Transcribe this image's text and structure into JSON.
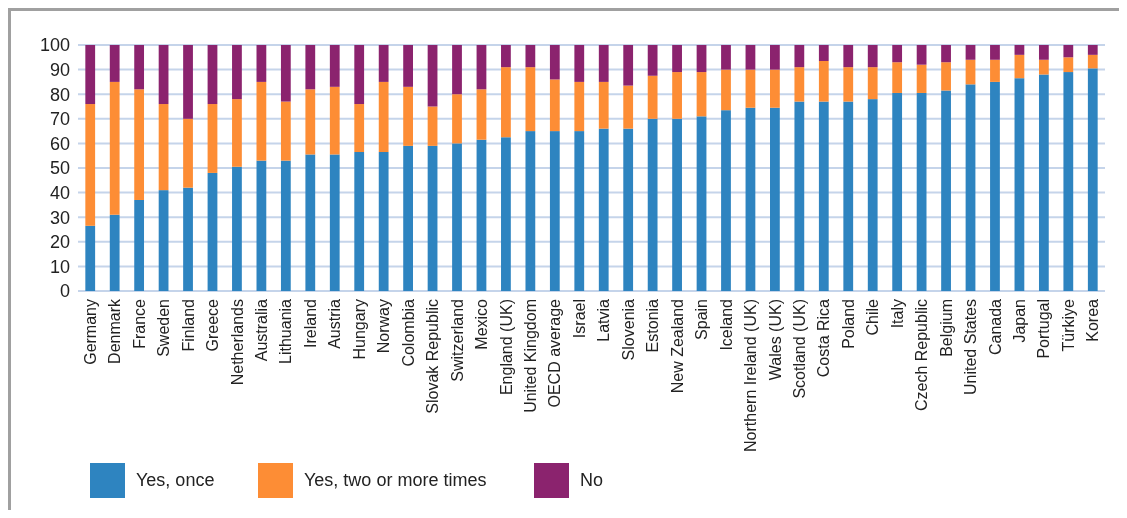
{
  "chart_data": {
    "type": "bar",
    "stacked": true,
    "categories": [
      "Germany",
      "Denmark",
      "France",
      "Sweden",
      "Finland",
      "Greece",
      "Netherlands",
      "Australia",
      "Lithuania",
      "Ireland",
      "Austria",
      "Hungary",
      "Norway",
      "Colombia",
      "Slovak Republic",
      "Switzerland",
      "Mexico",
      "England (UK)",
      "United Kingdom",
      "OECD average",
      "Israel",
      "Latvia",
      "Slovenia",
      "Estonia",
      "New Zealand",
      "Spain",
      "Iceland",
      "Northern Ireland (UK)",
      "Wales (UK)",
      "Scotland (UK)",
      "Costa Rica",
      "Poland",
      "Chile",
      "Italy",
      "Czech Republic",
      "Belgium",
      "United States",
      "Canada",
      "Japan",
      "Portugal",
      "Türkiye",
      "Korea"
    ],
    "series": [
      {
        "name": "Yes, once",
        "color": "#2e84c0",
        "values": [
          26.5,
          31,
          37,
          41,
          42,
          48,
          50.5,
          53,
          53,
          55.5,
          55.5,
          56.5,
          56.5,
          59,
          59,
          60,
          61.5,
          62.5,
          65,
          65,
          65,
          66,
          66,
          70,
          70,
          71,
          73.5,
          74.5,
          74.5,
          77,
          77,
          77,
          78,
          80.5,
          80.5,
          81.5,
          84,
          85,
          86.5,
          88,
          89,
          90.5
        ]
      },
      {
        "name": "Yes, two or more times",
        "color": "#fd8d35",
        "values": [
          49.5,
          54,
          45,
          35,
          28,
          28,
          27.5,
          32,
          24,
          26.5,
          27.5,
          19.5,
          28.5,
          24,
          16,
          20,
          20.5,
          28.5,
          26,
          21,
          20,
          19,
          17.5,
          17.5,
          19,
          18,
          16.5,
          15.5,
          15.5,
          14,
          16.5,
          14,
          13,
          12.5,
          11.5,
          11.5,
          10,
          9,
          9.5,
          6,
          6,
          5.5
        ]
      },
      {
        "name": "No",
        "color": "#8b236e",
        "values": [
          24,
          15,
          18,
          24,
          30,
          24,
          22,
          15,
          23,
          18,
          17,
          24,
          15,
          17,
          25,
          20,
          18,
          9,
          9,
          14,
          15,
          15,
          16.5,
          12.5,
          11,
          11,
          10,
          10,
          10,
          9,
          6.5,
          9,
          9,
          7,
          8,
          7,
          6,
          6,
          4,
          6,
          5,
          4
        ]
      }
    ],
    "ylim": [
      0,
      100
    ],
    "yticks": [
      0,
      10,
      20,
      30,
      40,
      50,
      60,
      70,
      80,
      90,
      100
    ],
    "grid": "y",
    "legend": "bottom"
  }
}
